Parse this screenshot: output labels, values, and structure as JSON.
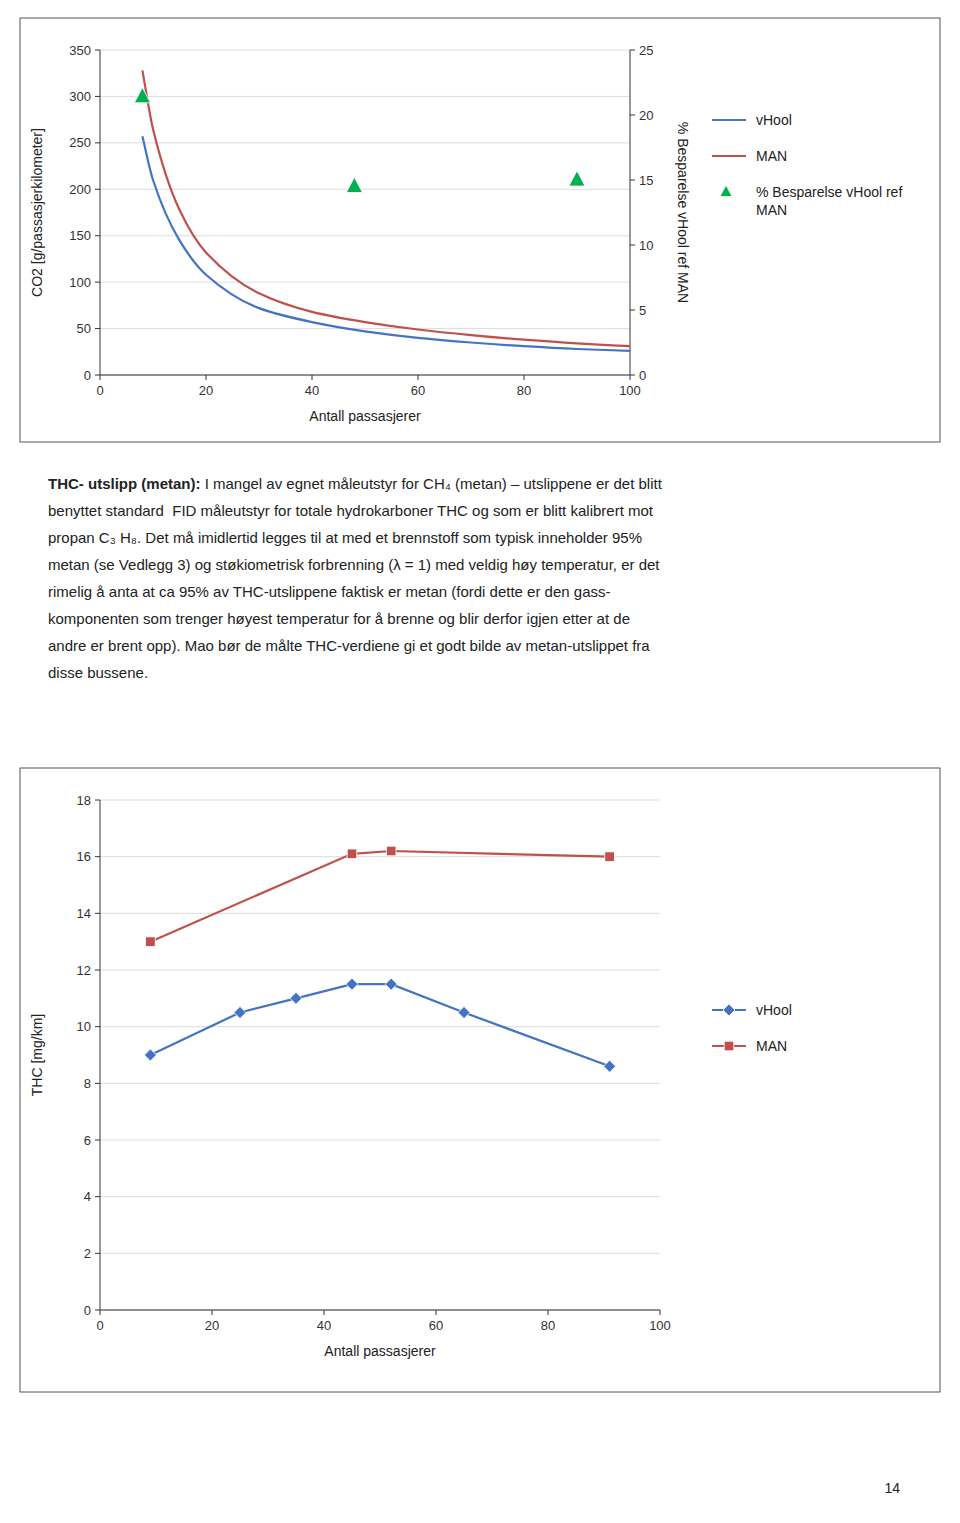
{
  "chart_data": [
    {
      "type": "line",
      "xlabel": "Antall passasjerer",
      "ylabel": "CO2 [g/passasjerkilometer]",
      "y2label": "% Besparelse vHool ref MAN",
      "xlim": [
        0,
        100
      ],
      "ylim": [
        0,
        350
      ],
      "y2lim": [
        0,
        25
      ],
      "xticks": [
        0,
        20,
        40,
        60,
        80,
        100
      ],
      "yticks": [
        0,
        50,
        100,
        150,
        200,
        250,
        300,
        350
      ],
      "y2ticks": [
        0,
        5,
        10,
        15,
        20,
        25
      ],
      "grid": true,
      "legend": "right",
      "series": [
        {
          "name": "vHool",
          "color": "#4472C4",
          "line_style": "smooth",
          "x": [
            8,
            10,
            15,
            20,
            30,
            40,
            50,
            60,
            70,
            80,
            90,
            100
          ],
          "values": [
            257,
            210,
            145,
            108,
            72,
            57,
            47,
            40,
            35,
            31,
            28,
            26
          ]
        },
        {
          "name": "MAN",
          "color": "#C0504D",
          "line_style": "smooth",
          "x": [
            8,
            10,
            15,
            20,
            30,
            40,
            50,
            60,
            70,
            80,
            90,
            100
          ],
          "values": [
            328,
            265,
            178,
            132,
            88,
            68,
            57,
            49,
            43,
            38,
            34,
            31
          ]
        },
        {
          "name": "% Besparelse vHool ref\nMAN",
          "type": "scatter",
          "marker": "triangle",
          "axis": "y2",
          "color": "#00B050",
          "x": [
            8,
            48,
            90
          ],
          "values": [
            21.4,
            14.5,
            15.0
          ]
        }
      ]
    },
    {
      "type": "line",
      "xlabel": "Antall passasjerer",
      "ylabel": "THC [mg/km]",
      "xlim": [
        0,
        100
      ],
      "ylim": [
        0,
        18
      ],
      "xticks": [
        0,
        20,
        40,
        60,
        80,
        100
      ],
      "yticks": [
        0,
        2,
        4,
        6,
        8,
        10,
        12,
        14,
        16,
        18
      ],
      "grid": true,
      "legend": "right",
      "series": [
        {
          "name": "vHool",
          "color": "#4472C4",
          "marker": "diamond",
          "line_style": "solid",
          "x": [
            9,
            25,
            35,
            45,
            52,
            65,
            91
          ],
          "values": [
            9.0,
            10.5,
            11.0,
            11.5,
            11.5,
            10.5,
            8.6
          ]
        },
        {
          "name": "MAN",
          "color": "#C0504D",
          "marker": "square",
          "line_style": "solid",
          "x": [
            9,
            45,
            52,
            91
          ],
          "values": [
            13.0,
            16.1,
            16.2,
            16.0
          ]
        }
      ]
    }
  ],
  "text": {
    "heading": "THC- utslipp (metan):",
    "lines": [
      " I mangel av egnet måleutstyr for CH₄ (metan) – utslippene er det blitt",
      "benyttet standard  FID måleutstyr for totale hydrokarboner THC og som er blitt kalibrert mot",
      "propan C₃ H₈. Det må imidlertid legges til at med et brennstoff som typisk inneholder 95%",
      "metan (se Vedlegg 3) og støkiometrisk forbrenning (λ = 1) med veldig høy temperatur, er det",
      "rimelig å anta at ca 95% av THC-utslippene faktisk er metan (fordi dette er den gass-",
      "komponenten som trenger høyest temperatur for å brenne og blir derfor igjen etter at de",
      "andre er brent opp). Mao bør de målte THC-verdiene gi et godt bilde av metan-utslippet fra",
      "disse bussene."
    ]
  },
  "page_number": "14"
}
